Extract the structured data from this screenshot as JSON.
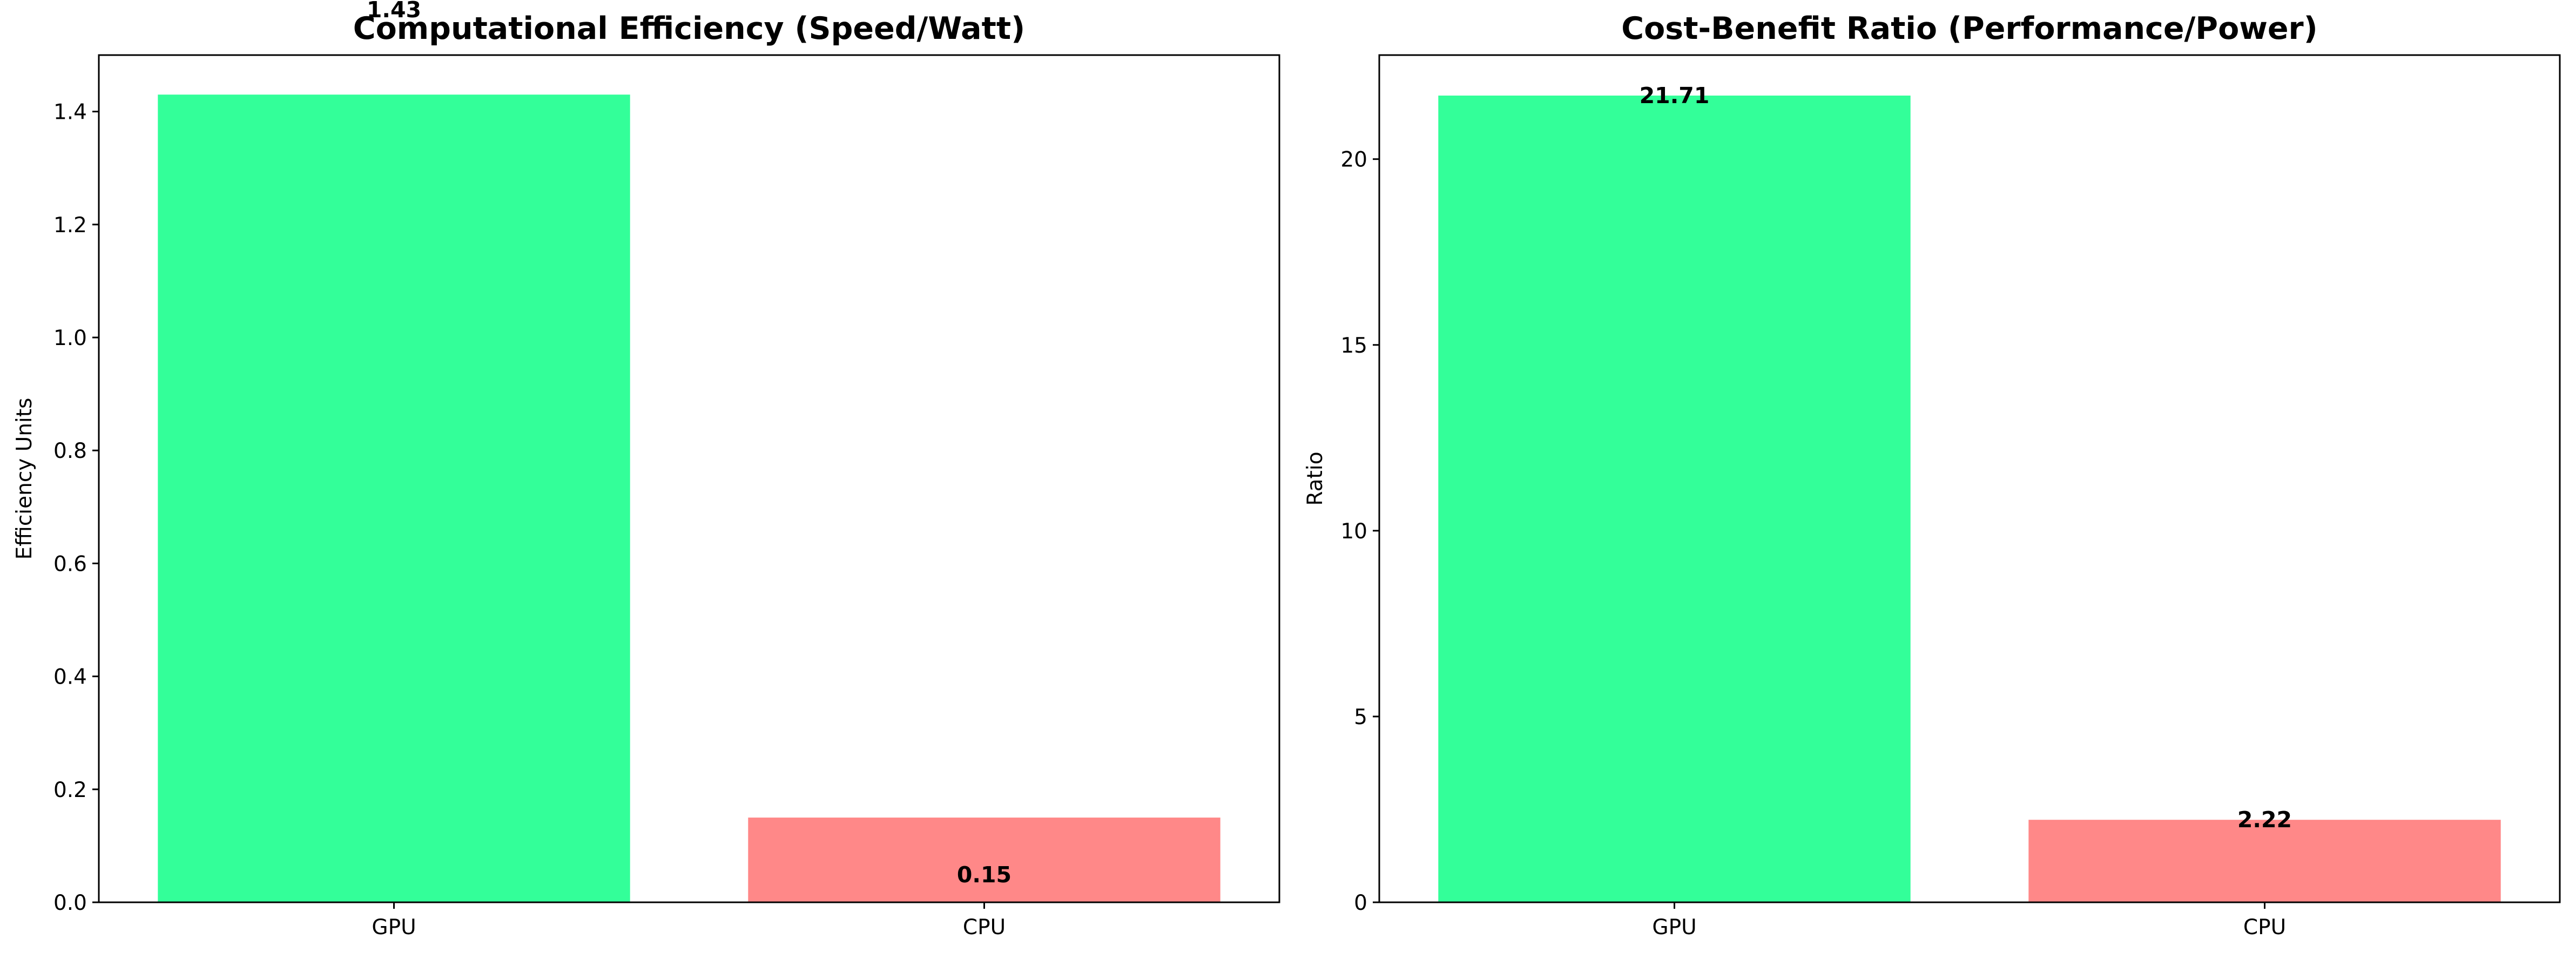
{
  "chart_data": [
    {
      "type": "bar",
      "title": "Computational Efficiency (Speed/Watt)",
      "xlabel": "",
      "ylabel": "Efficiency Units",
      "categories": [
        "GPU",
        "CPU"
      ],
      "values": [
        1.43,
        0.15
      ],
      "data_labels": [
        "1.43",
        "0.15"
      ],
      "colors": [
        "#33ff99",
        "#ff8888"
      ],
      "ylim": [
        0,
        1.5
      ],
      "yticks": [
        0.0,
        0.2,
        0.4,
        0.6,
        0.8,
        1.0,
        1.2,
        1.4
      ],
      "ytick_labels": [
        "0.0",
        "0.2",
        "0.4",
        "0.6",
        "0.8",
        "1.0",
        "1.2",
        "1.4"
      ],
      "grid": false
    },
    {
      "type": "bar",
      "title": "Cost-Benefit Ratio (Performance/Power)",
      "xlabel": "",
      "ylabel": "Ratio",
      "categories": [
        "GPU",
        "CPU"
      ],
      "values": [
        21.71,
        2.22
      ],
      "data_labels": [
        "21.71",
        "2.22"
      ],
      "colors": [
        "#33ff99",
        "#ff8888"
      ],
      "ylim": [
        0,
        22.8
      ],
      "yticks": [
        0,
        5,
        10,
        15,
        20
      ],
      "ytick_labels": [
        "0",
        "5",
        "10",
        "15",
        "20"
      ],
      "grid": false
    }
  ]
}
